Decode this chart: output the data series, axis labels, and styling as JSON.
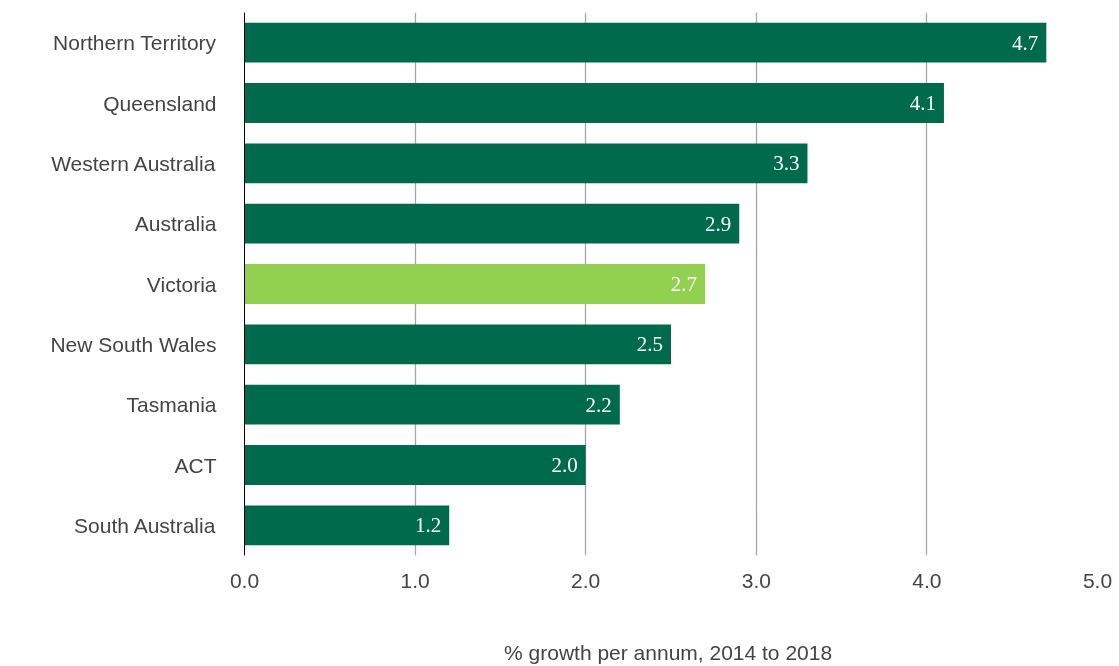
{
  "chart_data": {
    "type": "bar",
    "orientation": "horizontal",
    "xlabel": "% growth per annum,  2014 to 2018",
    "categories": [
      "Northern Territory",
      "Queensland",
      "Western Australia",
      "Australia",
      "Victoria",
      "New South Wales",
      "Tasmania",
      "ACT",
      "South Australia"
    ],
    "values": [
      4.7,
      4.1,
      3.3,
      2.9,
      2.7,
      2.5,
      2.2,
      2.0,
      1.2
    ],
    "value_labels": [
      "4.7",
      "4.1",
      "3.3",
      "2.9",
      "2.7",
      "2.5",
      "2.2",
      "2.0",
      "1.2"
    ],
    "colors": [
      "#006a4d",
      "#006a4d",
      "#006a4d",
      "#006a4d",
      "#92d050",
      "#006a4d",
      "#006a4d",
      "#006a4d",
      "#006a4d"
    ],
    "xlim": [
      0,
      5
    ],
    "xticks": [
      {
        "value": 0,
        "label": "0.0"
      },
      {
        "value": 1,
        "label": "1.0"
      },
      {
        "value": 2,
        "label": "2.0"
      },
      {
        "value": 3,
        "label": "3.0"
      },
      {
        "value": 4,
        "label": "4.0"
      },
      {
        "value": 5,
        "label": "5.0"
      }
    ],
    "grid": "x"
  }
}
